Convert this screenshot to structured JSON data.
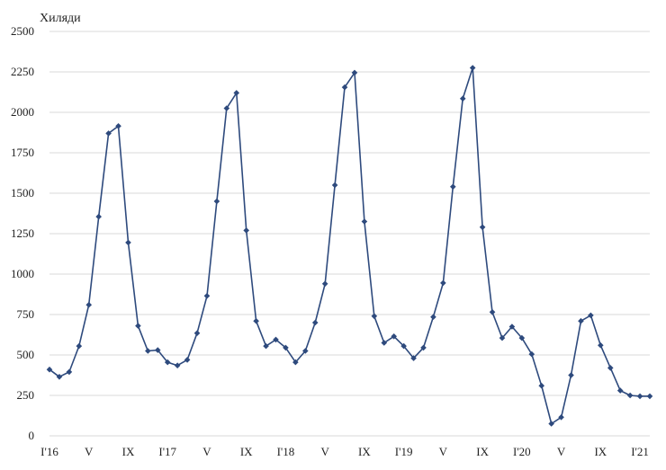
{
  "chart_data": {
    "type": "line",
    "unit_label": "Хиляди",
    "ylim": [
      0,
      2500
    ],
    "yticks": [
      0,
      250,
      500,
      750,
      1000,
      1250,
      1500,
      1750,
      2000,
      2250,
      2500
    ],
    "grid": true,
    "legend": "none",
    "line_color": "#2e4a7d",
    "x_tick_labels": [
      {
        "index": 0,
        "label": "I'16"
      },
      {
        "index": 4,
        "label": "V"
      },
      {
        "index": 8,
        "label": "IX"
      },
      {
        "index": 12,
        "label": "I'17"
      },
      {
        "index": 16,
        "label": "V"
      },
      {
        "index": 20,
        "label": "IX"
      },
      {
        "index": 24,
        "label": "I'18"
      },
      {
        "index": 28,
        "label": "V"
      },
      {
        "index": 32,
        "label": "IX"
      },
      {
        "index": 36,
        "label": "I'19"
      },
      {
        "index": 40,
        "label": "V"
      },
      {
        "index": 44,
        "label": "IX"
      },
      {
        "index": 48,
        "label": "I'20"
      },
      {
        "index": 52,
        "label": "V"
      },
      {
        "index": 56,
        "label": "IX"
      },
      {
        "index": 60,
        "label": "I'21"
      }
    ],
    "series": [
      {
        "values": [
          410,
          365,
          395,
          555,
          810,
          1355,
          1870,
          1915,
          1195,
          680,
          525,
          530,
          455,
          435,
          470,
          635,
          865,
          1450,
          2025,
          2120,
          1270,
          710,
          555,
          595,
          545,
          455,
          525,
          700,
          940,
          1550,
          2155,
          2245,
          1325,
          740,
          575,
          615,
          555,
          480,
          545,
          735,
          945,
          1540,
          2085,
          2275,
          1290,
          765,
          605,
          675,
          605,
          505,
          310,
          75,
          115,
          375,
          710,
          745,
          560,
          420,
          280,
          250,
          245,
          245
        ]
      }
    ]
  }
}
